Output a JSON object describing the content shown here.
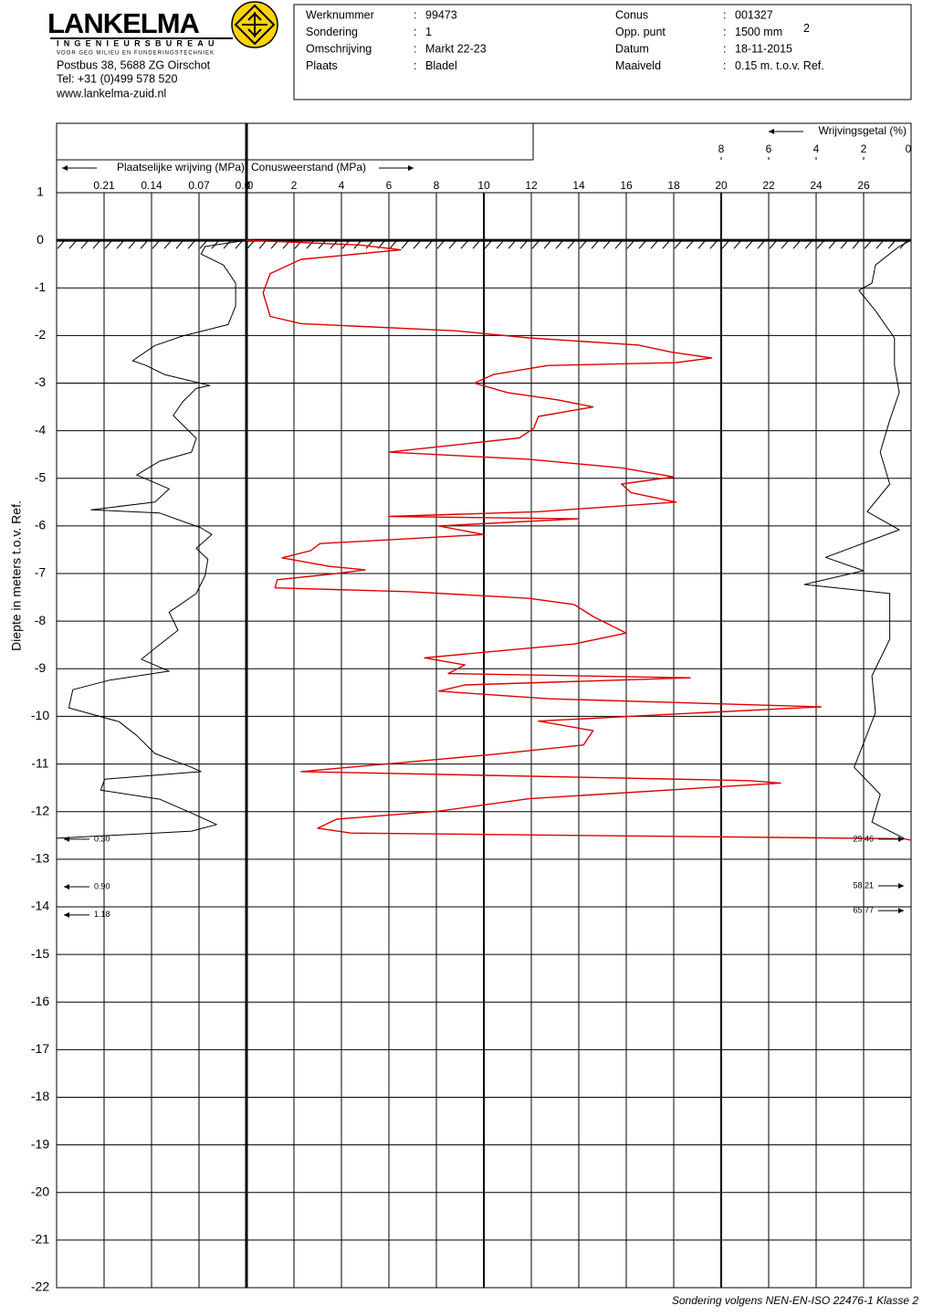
{
  "header": {
    "company": "LANKELMA",
    "subtitle": "INGENIEURSBUREAU",
    "tagline": "VOOR GEO MILIEU EN FUNDERINGSTECHNIEK",
    "address": [
      "Postbus 38, 5688 ZG  Oirschot",
      "Tel: +31 (0)499 578 520",
      "www.lankelma-zuid.nl"
    ],
    "separator": ":",
    "fields": [
      {
        "label": "Werknummer",
        "value": "99473"
      },
      {
        "label": "Sondering",
        "value": "1"
      },
      {
        "label": "Omschrijving",
        "value": "Markt 22-23"
      },
      {
        "label": "Plaats",
        "value": "Bladel"
      },
      {
        "label": "Conus",
        "value": "001327"
      },
      {
        "label": "Opp. punt",
        "value": "1500 mm",
        "sup": "2"
      },
      {
        "label": "Datum",
        "value": "18-11-2015"
      },
      {
        "label": "Maaiveld",
        "value": "0.15     m.  t.o.v. Ref."
      }
    ]
  },
  "chart_data": {
    "type": "line",
    "ylabel": "Diepte in meters t.o.v.  Ref.",
    "ylim": [
      -22,
      1
    ],
    "yticks": [
      1,
      0,
      -1,
      -2,
      -3,
      -4,
      -5,
      -6,
      -7,
      -8,
      -9,
      -10,
      -11,
      -12,
      -13,
      -14,
      -15,
      -16,
      -17,
      -18,
      -19,
      -20,
      -21,
      -22
    ],
    "grid": true,
    "axes": {
      "cone": {
        "xlim": [
          0,
          28
        ],
        "xticks": [
          0,
          2,
          4,
          6,
          8,
          10,
          12,
          14,
          16,
          18,
          20,
          22,
          24,
          26
        ]
      },
      "friction": {
        "xlim": [
          0.28,
          0
        ],
        "xticks": [
          0.21,
          0.14,
          0.07,
          {
            "value": 0,
            "label": "0.0"
          }
        ]
      },
      "ratio": {
        "xlim": [
          36,
          0
        ],
        "xticks": [
          8,
          6,
          4,
          2,
          0
        ]
      }
    },
    "series": [
      {
        "name": "Conusweerstand (MPa)",
        "color": "#e00000",
        "axis": "cone",
        "depth": [
          0,
          -0.1,
          -0.2,
          -0.4,
          -0.7,
          -1.1,
          -1.6,
          -1.75,
          -1.9,
          -2.05,
          -2.2,
          -2.35,
          -2.47,
          -2.57,
          -2.63,
          -2.82,
          -3.0,
          -3.2,
          -3.35,
          -3.5,
          -3.7,
          -3.95,
          -4.15,
          -4.45,
          -4.6,
          -4.78,
          -4.97,
          -5.12,
          -5.3,
          -5.5,
          -5.7,
          -5.8,
          -5.85,
          -6.0,
          -6.18,
          -6.37,
          -6.52,
          -6.67,
          -6.85,
          -6.92,
          -7.0,
          -7.13,
          -7.3,
          -7.38,
          -7.52,
          -7.65,
          -7.9,
          -8.25,
          -8.48,
          -8.77,
          -8.92,
          -9.1,
          -9.19,
          -9.34,
          -9.47,
          -9.63,
          -9.8,
          -9.95,
          -10.1,
          -10.3,
          -10.6,
          -10.8,
          -10.9,
          -11.16,
          -11.35,
          -11.4,
          -11.73,
          -11.99,
          -12.16,
          -12.35,
          -12.45,
          -12.57,
          -12.6
        ],
        "values": [
          0,
          4.8,
          6.5,
          2.3,
          1.0,
          0.7,
          1.0,
          2.3,
          8.8,
          11.9,
          16.5,
          17.9,
          19.6,
          18.1,
          12.7,
          10.4,
          9.6,
          11,
          13.1,
          14.6,
          12.3,
          12.1,
          11.5,
          6.0,
          11.9,
          15.8,
          18,
          15.8,
          16.2,
          18.1,
          12.3,
          6.0,
          14,
          8.1,
          10,
          3.1,
          2.7,
          1.5,
          3.5,
          5.0,
          3.8,
          1.3,
          1.2,
          6.9,
          11.9,
          13.8,
          14.6,
          16,
          13.8,
          7.5,
          9.2,
          8.5,
          18.7,
          9.2,
          8.1,
          12.7,
          24.2,
          18.1,
          12.3,
          14.6,
          14.2,
          10.4,
          8.1,
          2.3,
          21.2,
          22.5,
          11.9,
          8.1,
          3.8,
          3.0,
          4.4,
          27.7,
          28
        ]
      },
      {
        "name": "Plaatselijke wrijving (MPa)",
        "color": "#000000",
        "axis": "friction",
        "depth": [
          0,
          -0.13,
          -0.29,
          -0.52,
          -0.9,
          -1.38,
          -1.77,
          -2.01,
          -2.21,
          -2.53,
          -2.63,
          -2.82,
          -3.05,
          -3.11,
          -3.39,
          -3.68,
          -4.16,
          -4.45,
          -4.64,
          -4.93,
          -5.22,
          -5.5,
          -5.66,
          -5.73,
          -6.04,
          -6.18,
          -6.47,
          -6.7,
          -7.04,
          -7.42,
          -7.81,
          -8.19,
          -8.57,
          -8.8,
          -9.05,
          -9.24,
          -9.44,
          -9.82,
          -10.11,
          -10.4,
          -10.78,
          -11.07,
          -11.16,
          -11.32,
          -11.55,
          -11.74,
          -12.03,
          -12.27,
          -12.41,
          -12.56
        ],
        "values": [
          0,
          0.061,
          0.067,
          0.034,
          0.016,
          0.016,
          0.027,
          0.094,
          0.135,
          0.168,
          0.148,
          0.121,
          0.054,
          0.074,
          0.094,
          0.108,
          0.074,
          0.081,
          0.128,
          0.162,
          0.114,
          0.135,
          0.229,
          0.128,
          0.067,
          0.051,
          0.074,
          0.057,
          0.061,
          0.074,
          0.114,
          0.101,
          0.135,
          0.155,
          0.114,
          0.202,
          0.256,
          0.262,
          0.188,
          0.162,
          0.135,
          0.081,
          0.067,
          0.209,
          0.215,
          0.128,
          0.081,
          0.044,
          0.081,
          0.28
        ]
      },
      {
        "name": "Wrijvingsgetal (%)",
        "color": "#000000",
        "axis": "ratio",
        "depth": [
          0,
          -0.13,
          -0.52,
          -0.9,
          -1.05,
          -1.48,
          -2.05,
          -2.63,
          -3.2,
          -3.78,
          -4.45,
          -5.12,
          -5.7,
          -6.08,
          -6.66,
          -6.94,
          -7.23,
          -7.42,
          -8.38,
          -9.15,
          -9.92,
          -11.07,
          -11.64,
          -12.22,
          -12.56
        ],
        "values": [
          0,
          0.5,
          1.5,
          1.65,
          2.2,
          1.5,
          0.7,
          0.7,
          0.5,
          0.9,
          1.3,
          0.9,
          1.85,
          0.5,
          3.6,
          2.0,
          4.5,
          0.9,
          0.9,
          1.65,
          1.5,
          2.4,
          1.3,
          1.65,
          0.3
        ]
      }
    ],
    "offscale": [
      {
        "axis": "friction",
        "depth": [
          -12.58,
          -13.58,
          -14.17
        ],
        "values": [
          0.3,
          0.9,
          1.18
        ],
        "value_labels": [
          "0.30",
          "0.90",
          "1.18"
        ]
      },
      {
        "axis": "ratio",
        "depth": [
          -12.58,
          -13.56,
          -14.08
        ],
        "values": [
          29.46,
          58.21,
          65.77
        ],
        "value_labels": [
          "29.46",
          "58.21",
          "65.77"
        ]
      }
    ],
    "footnote": "Sondering volgens NEN-EN-ISO 22476-1 Klasse 2"
  }
}
